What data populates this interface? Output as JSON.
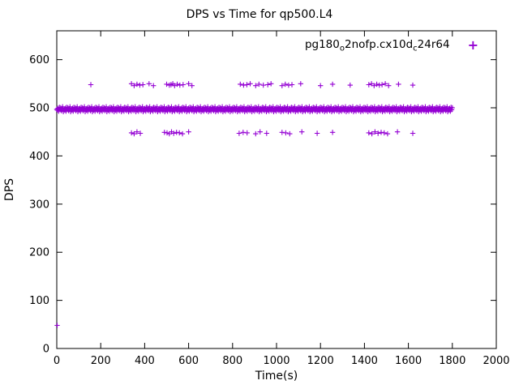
{
  "title": "DPS vs Time for qp500.L4",
  "legend": {
    "parts": [
      {
        "t": "pg180"
      },
      {
        "t": "o"
      },
      {
        "t": "2nofp.cx10d"
      },
      {
        "t": "c"
      },
      {
        "t": "24r64"
      }
    ],
    "marker": "+"
  },
  "colors": {
    "points": "#9400d3",
    "axis": "#000000",
    "background": "#ffffff"
  },
  "chart_data": {
    "type": "scatter",
    "title": "DPS vs Time for qp500.L4",
    "xlabel": "Time(s)",
    "ylabel": "DPS",
    "xlim": [
      0,
      2000
    ],
    "ylim": [
      0,
      660
    ],
    "xticks": [
      0,
      200,
      400,
      600,
      800,
      1000,
      1200,
      1400,
      1600,
      1800,
      2000
    ],
    "yticks": [
      0,
      100,
      200,
      300,
      400,
      500,
      600
    ],
    "grid": false,
    "legend_position": "top-right-inside",
    "series": [
      {
        "name": "pg180_o2nofp.cx10d_c24r64",
        "marker": "plus",
        "color": "#9400d3",
        "band": {
          "y": 497,
          "x_start": 0,
          "x_end": 1800,
          "step": 3,
          "jitter": [
            0,
            -2,
            2,
            -4,
            4,
            -1,
            3,
            -3,
            1,
            5,
            -5
          ]
        },
        "upper_row": {
          "y": 548,
          "x": [
            155,
            340,
            352,
            365,
            378,
            392,
            420,
            440,
            500,
            512,
            520,
            528,
            536,
            548,
            560,
            575,
            600,
            615,
            835,
            850,
            865,
            880,
            905,
            920,
            940,
            960,
            975,
            1025,
            1040,
            1055,
            1070,
            1110,
            1200,
            1255,
            1335,
            1420,
            1432,
            1444,
            1456,
            1468,
            1480,
            1495,
            1510,
            1555,
            1620
          ],
          "y_jitter": [
            0,
            2,
            -2,
            1,
            -1
          ]
        },
        "lower_row": {
          "y": 448,
          "x": [
            340,
            352,
            365,
            380,
            490,
            502,
            512,
            522,
            532,
            545,
            558,
            572,
            600,
            830,
            848,
            866,
            905,
            925,
            955,
            1025,
            1042,
            1060,
            1115,
            1185,
            1255,
            1420,
            1434,
            1448,
            1462,
            1476,
            1490,
            1505,
            1550,
            1620
          ],
          "y_jitter": [
            0,
            -2,
            2,
            -1,
            1
          ]
        },
        "extra_points": [
          [
            2,
            48
          ]
        ]
      }
    ]
  }
}
